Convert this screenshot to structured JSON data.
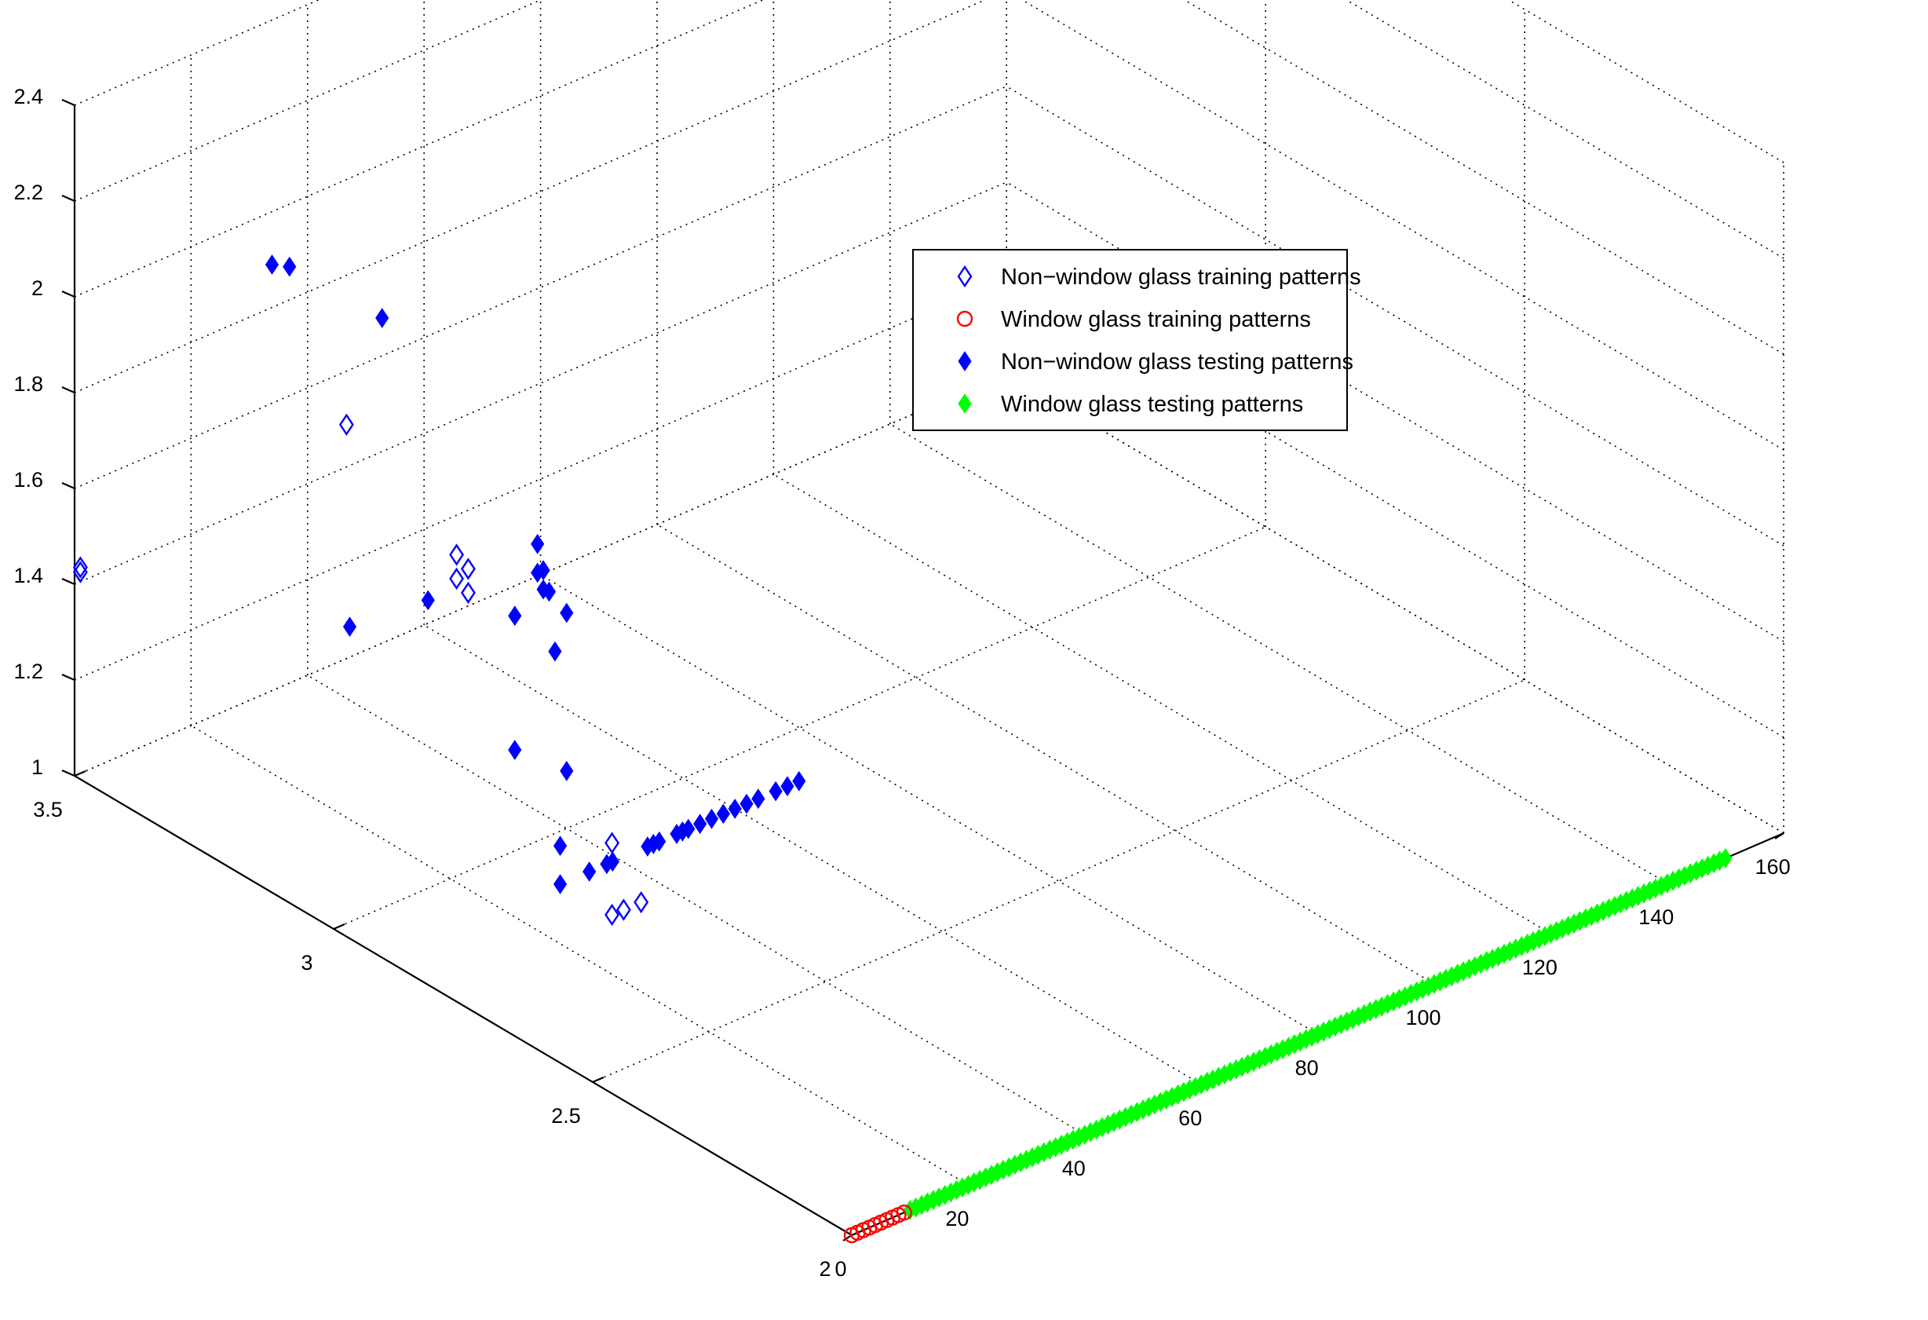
{
  "chart_data": {
    "type": "scatter",
    "title": "",
    "xlabel": "",
    "ylabel": "",
    "zlabel": "",
    "xlim": [
      0,
      160
    ],
    "ylim": [
      2,
      3.5
    ],
    "zlim": [
      1,
      2.4
    ],
    "grid": true,
    "legend_position": "top-right",
    "x_ticks": [
      "0",
      "20",
      "40",
      "60",
      "80",
      "100",
      "120",
      "140",
      "160"
    ],
    "y_ticks": [
      "2",
      "2.5",
      "3",
      "3.5"
    ],
    "z_ticks": [
      "1",
      "1.2",
      "1.4",
      "1.6",
      "1.8",
      "2",
      "2.2",
      "2.4"
    ],
    "series": [
      {
        "name": "Non−window glass training patterns",
        "marker": "diamond-open",
        "color": "#0000ff",
        "points": [
          [
            1,
            3.5,
            1.43
          ],
          [
            1,
            3.5,
            1.42
          ],
          [
            20,
            3.2,
            1.82
          ],
          [
            30,
            3.1,
            1.56
          ],
          [
            30,
            3.1,
            1.51
          ],
          [
            32,
            3.1,
            1.52
          ],
          [
            32,
            3.1,
            1.47
          ],
          [
            30,
            2.8,
            1.15
          ],
          [
            30,
            2.8,
            1.0
          ],
          [
            32,
            2.8,
            1.0
          ],
          [
            35,
            2.8,
            1.0
          ]
        ]
      },
      {
        "name": "Window glass training patterns",
        "color": "#ff0000",
        "marker": "circle-open",
        "points": [
          [
            0,
            2,
            1
          ],
          [
            1,
            2,
            1
          ],
          [
            2,
            2,
            1
          ],
          [
            3,
            2,
            1
          ],
          [
            4,
            2,
            1
          ],
          [
            5,
            2,
            1
          ],
          [
            6,
            2,
            1
          ],
          [
            7,
            2,
            1
          ],
          [
            8,
            2,
            1
          ],
          [
            9,
            2,
            1
          ]
        ]
      },
      {
        "name": "Non−window glass testing patterns",
        "color": "#0000ff",
        "marker": "diamond-filled",
        "points": [
          [
            25,
            3.4,
            2.0
          ],
          [
            28,
            3.4,
            1.98
          ],
          [
            35,
            3.3,
            1.9
          ],
          [
            35,
            3.0,
            1.62
          ],
          [
            35,
            3.0,
            1.56
          ],
          [
            36,
            3.0,
            1.56
          ],
          [
            36,
            3.0,
            1.52
          ],
          [
            37,
            3.0,
            1.51
          ],
          [
            34,
            3.2,
            1.38
          ],
          [
            25,
            3.25,
            1.34
          ],
          [
            38,
            3.0,
            1.38
          ],
          [
            40,
            3.0,
            1.45
          ],
          [
            40,
            3.1,
            1.38
          ],
          [
            40,
            3.0,
            1.12
          ],
          [
            40,
            3.1,
            1.1
          ],
          [
            30,
            2.9,
            1.08
          ],
          [
            30,
            2.9,
            1.0
          ],
          [
            35,
            2.9,
            1.0
          ],
          [
            38,
            2.9,
            1.0
          ],
          [
            39,
            2.9,
            1.0
          ],
          [
            45,
            2.9,
            1.0
          ],
          [
            46,
            2.9,
            1.0
          ],
          [
            47,
            2.9,
            1.0
          ],
          [
            50,
            2.9,
            1.0
          ],
          [
            51,
            2.9,
            1.0
          ],
          [
            52,
            2.9,
            1.0
          ],
          [
            54,
            2.9,
            1.0
          ],
          [
            56,
            2.9,
            1.0
          ],
          [
            58,
            2.9,
            1.0
          ],
          [
            60,
            2.9,
            1.0
          ],
          [
            62,
            2.9,
            1.0
          ],
          [
            64,
            2.9,
            1.0
          ],
          [
            67,
            2.9,
            1.0
          ],
          [
            69,
            2.9,
            1.0
          ],
          [
            71,
            2.9,
            1.0
          ]
        ]
      },
      {
        "name": "Window glass testing patterns",
        "color": "#00ff00",
        "marker": "diamond-filled",
        "x_range": [
          10,
          150
        ],
        "x_step": 1,
        "y": 2,
        "z": 1
      }
    ]
  }
}
